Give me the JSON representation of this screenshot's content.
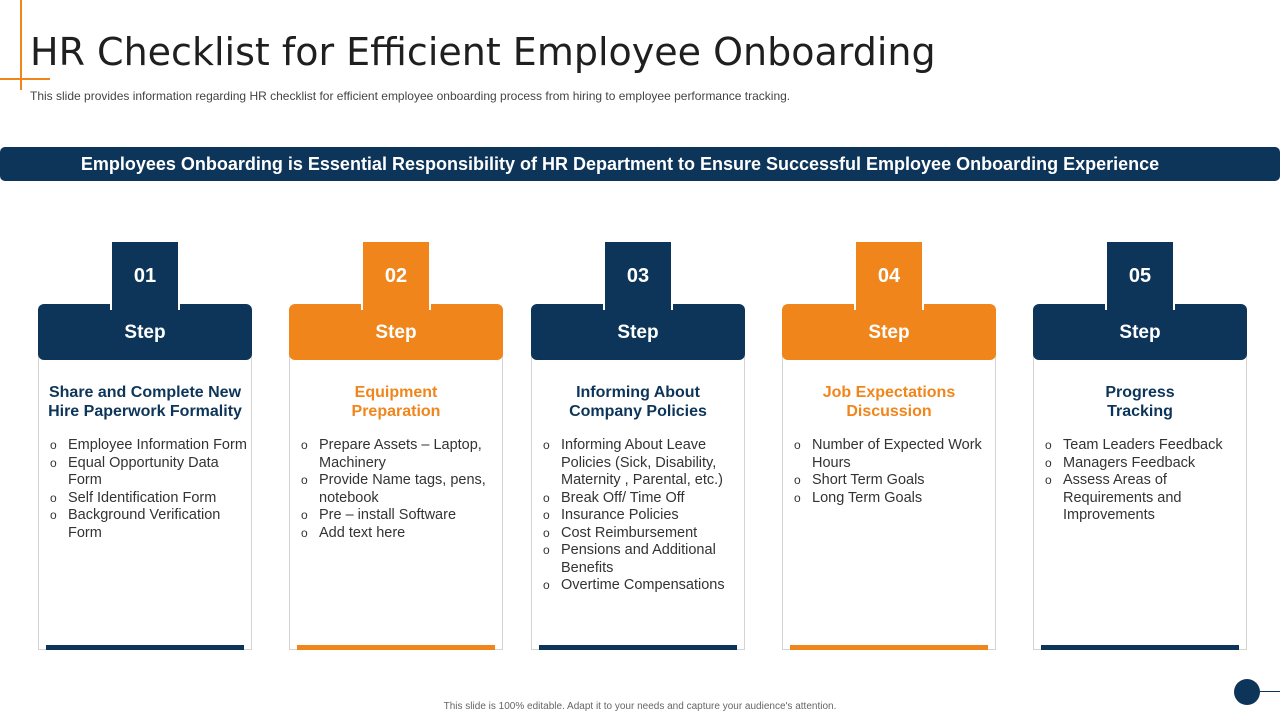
{
  "header": {
    "title": "HR Checklist for Efficient Employee Onboarding",
    "subtitle": "This slide provides  information  regarding  HR checklist for efficient  employee  onboarding  process from hiring  to employee  performance  tracking."
  },
  "banner": {
    "text": "Employees Onboarding is Essential Responsibility of HR Department to Ensure Successful Employee Onboarding Experience"
  },
  "colors": {
    "navy": "#0d3559",
    "orange": "#f0861b"
  },
  "cards": [
    {
      "number": "01",
      "step": "Step",
      "color": "navy",
      "title": "Share and Complete New Hire Paperwork Formality",
      "items": [
        "Employee Information Form",
        "Equal Opportunity Data Form",
        "Self Identification Form",
        "Background Verification Form"
      ]
    },
    {
      "number": "02",
      "step": "Step",
      "color": "orange",
      "title": "Equipment Preparation",
      "items": [
        "Prepare Assets – Laptop, Machinery",
        "Provide Name tags, pens, notebook",
        "Pre – install Software",
        "Add text here"
      ]
    },
    {
      "number": "03",
      "step": "Step",
      "color": "navy",
      "title": "Informing About Company Policies",
      "items": [
        "Informing About Leave Policies (Sick, Disability, Maternity , Parental, etc.)",
        "Break Off/ Time Off",
        "Insurance Policies",
        "Cost Reimbursement",
        "Pensions and   Additional Benefits",
        "Overtime Compensations"
      ]
    },
    {
      "number": "04",
      "step": "Step",
      "color": "orange",
      "title": "Job Expectations Discussion",
      "items": [
        "Number of Expected Work Hours",
        "Short Term Goals",
        "Long Term Goals"
      ]
    },
    {
      "number": "05",
      "step": "Step",
      "color": "navy",
      "title": "Progress Tracking",
      "items": [
        "Team Leaders Feedback",
        "Managers Feedback",
        "Assess Areas of Requirements and Improvements"
      ]
    }
  ],
  "footer": {
    "text": "This slide is 100% editable. Adapt it to your needs and capture your audience's attention."
  }
}
